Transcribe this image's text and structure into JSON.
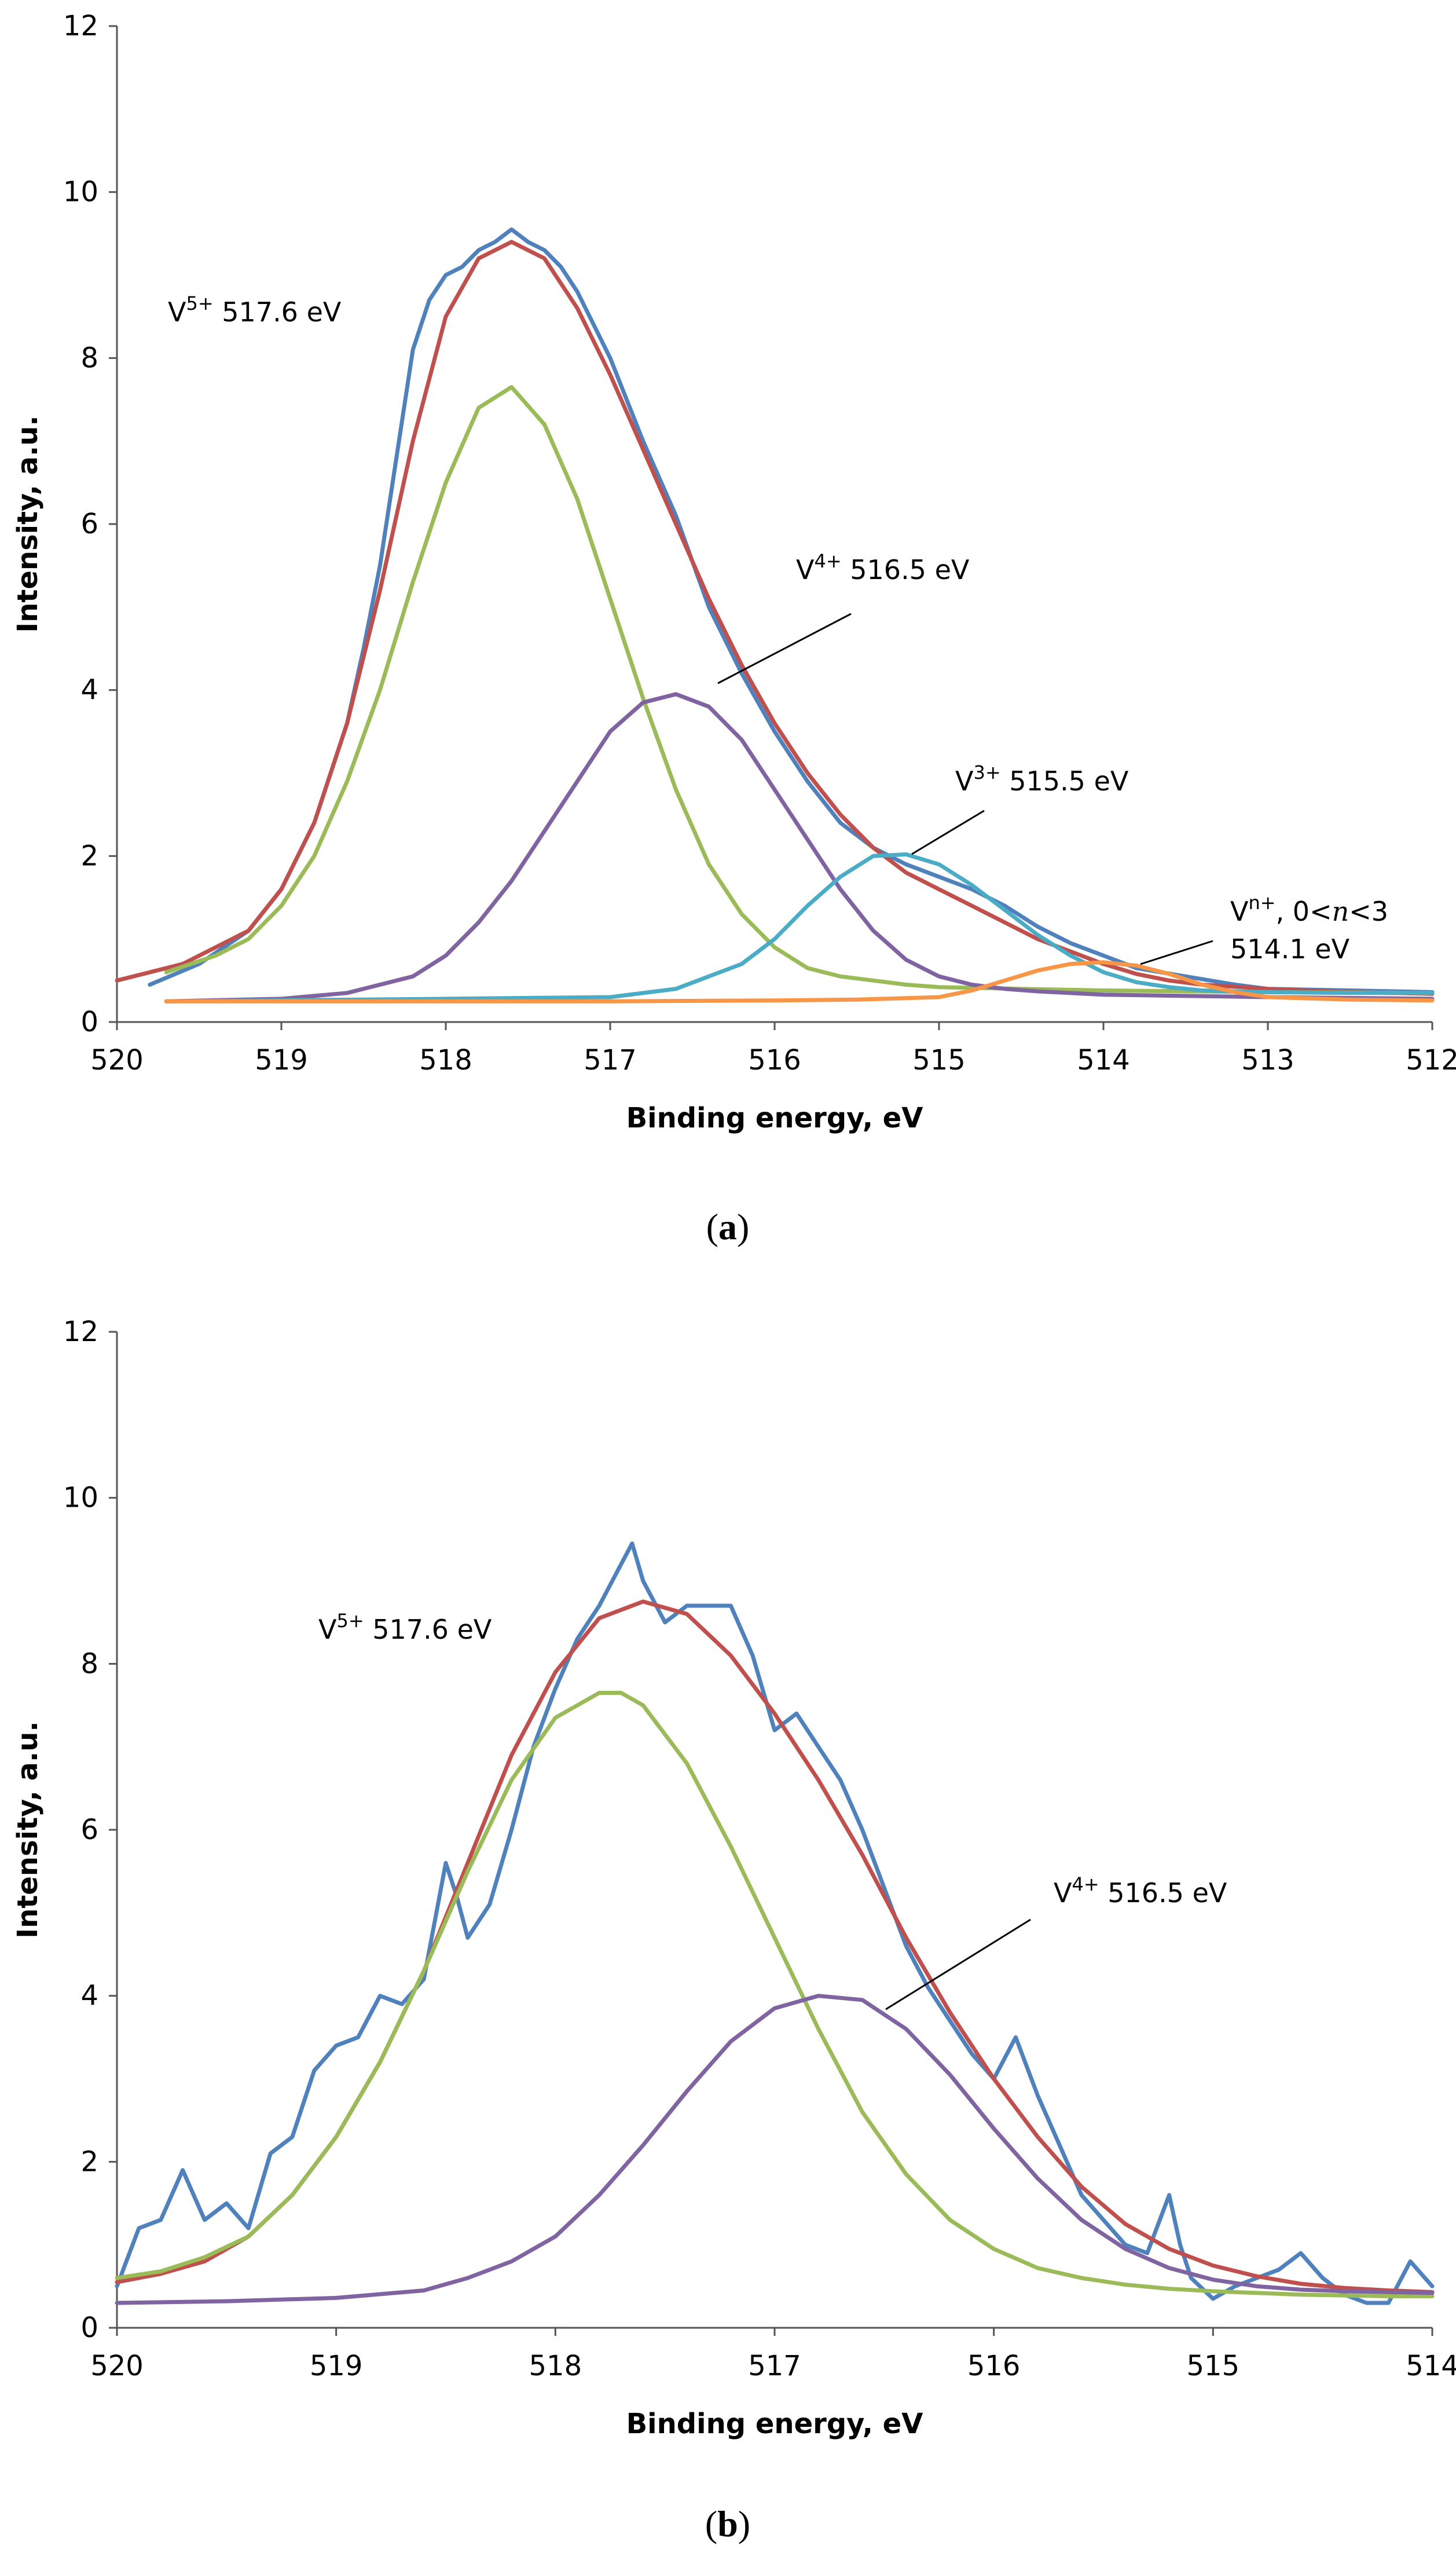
{
  "chart_data": [
    {
      "panel": "a",
      "type": "line",
      "xlabel": "Binding energy, eV",
      "ylabel": "Intensity, a.u.",
      "xlim": [
        520,
        512
      ],
      "ylim": [
        0,
        12
      ],
      "x_reversed": true,
      "xticks": [
        "520",
        "519",
        "518",
        "517",
        "516",
        "515",
        "514",
        "513",
        "512"
      ],
      "yticks": [
        "0",
        "2",
        "4",
        "6",
        "8",
        "10",
        "12"
      ],
      "grid": false,
      "legend": "none",
      "series": [
        {
          "color": "#4f81bd",
          "x": [
            519.8,
            519.5,
            519.2,
            519.0,
            518.8,
            518.6,
            518.5,
            518.4,
            518.3,
            518.2,
            518.1,
            518.0,
            517.9,
            517.8,
            517.7,
            517.6,
            517.5,
            517.4,
            517.3,
            517.2,
            517.0,
            516.8,
            516.6,
            516.4,
            516.2,
            516.0,
            515.8,
            515.6,
            515.4,
            515.2,
            515.0,
            514.8,
            514.6,
            514.4,
            514.2,
            514.0,
            513.8,
            513.5,
            513.2,
            513.0,
            512.5,
            512.0
          ],
          "y": [
            0.45,
            0.7,
            1.1,
            1.6,
            2.4,
            3.6,
            4.5,
            5.5,
            6.8,
            8.1,
            8.7,
            9.0,
            9.1,
            9.3,
            9.4,
            9.55,
            9.4,
            9.3,
            9.1,
            8.8,
            8.0,
            7.0,
            6.1,
            5.0,
            4.2,
            3.5,
            2.9,
            2.4,
            2.1,
            1.9,
            1.75,
            1.6,
            1.4,
            1.15,
            0.95,
            0.8,
            0.65,
            0.55,
            0.45,
            0.4,
            0.38,
            0.36
          ]
        },
        {
          "color": "#c0504d",
          "x": [
            520.0,
            519.6,
            519.2,
            519.0,
            518.8,
            518.6,
            518.4,
            518.2,
            518.0,
            517.8,
            517.6,
            517.4,
            517.2,
            517.0,
            516.8,
            516.6,
            516.4,
            516.2,
            516.0,
            515.8,
            515.6,
            515.4,
            515.2,
            515.0,
            514.8,
            514.6,
            514.4,
            514.2,
            514.0,
            513.8,
            513.6,
            513.4,
            513.0,
            512.5,
            512.0
          ],
          "y": [
            0.5,
            0.7,
            1.1,
            1.6,
            2.4,
            3.6,
            5.2,
            7.0,
            8.5,
            9.2,
            9.4,
            9.2,
            8.6,
            7.8,
            6.9,
            6.0,
            5.1,
            4.3,
            3.6,
            3.0,
            2.5,
            2.1,
            1.8,
            1.6,
            1.4,
            1.2,
            1.0,
            0.85,
            0.7,
            0.58,
            0.5,
            0.45,
            0.4,
            0.36,
            0.34
          ]
        },
        {
          "color": "#9bbb59",
          "x": [
            519.7,
            519.4,
            519.2,
            519.0,
            518.8,
            518.6,
            518.4,
            518.2,
            518.0,
            517.8,
            517.6,
            517.4,
            517.2,
            517.0,
            516.8,
            516.6,
            516.4,
            516.2,
            516.0,
            515.8,
            515.6,
            515.4,
            515.2,
            515.0,
            514.5,
            514.0,
            513.0,
            512.0
          ],
          "y": [
            0.6,
            0.8,
            1.0,
            1.4,
            2.0,
            2.9,
            4.0,
            5.3,
            6.5,
            7.4,
            7.65,
            7.2,
            6.3,
            5.1,
            3.9,
            2.8,
            1.9,
            1.3,
            0.9,
            0.65,
            0.55,
            0.5,
            0.45,
            0.42,
            0.4,
            0.38,
            0.36,
            0.35
          ]
        },
        {
          "color": "#8064a2",
          "x": [
            519.7,
            519.0,
            518.6,
            518.2,
            518.0,
            517.8,
            517.6,
            517.4,
            517.2,
            517.0,
            516.8,
            516.6,
            516.4,
            516.2,
            516.0,
            515.8,
            515.6,
            515.4,
            515.2,
            515.0,
            514.8,
            514.6,
            514.4,
            514.0,
            513.0,
            512.0
          ],
          "y": [
            0.25,
            0.28,
            0.35,
            0.55,
            0.8,
            1.2,
            1.7,
            2.3,
            2.9,
            3.5,
            3.85,
            3.95,
            3.8,
            3.4,
            2.8,
            2.2,
            1.6,
            1.1,
            0.75,
            0.55,
            0.45,
            0.4,
            0.37,
            0.33,
            0.3,
            0.28
          ]
        },
        {
          "color": "#4bacc6",
          "x": [
            519.7,
            518.0,
            517.0,
            516.6,
            516.2,
            516.0,
            515.8,
            515.6,
            515.4,
            515.2,
            515.0,
            514.8,
            514.6,
            514.4,
            514.2,
            514.0,
            513.8,
            513.6,
            513.4,
            513.0,
            512.5,
            512.0
          ],
          "y": [
            0.25,
            0.28,
            0.3,
            0.4,
            0.7,
            1.0,
            1.4,
            1.75,
            2.0,
            2.02,
            1.9,
            1.65,
            1.35,
            1.05,
            0.8,
            0.6,
            0.48,
            0.42,
            0.38,
            0.36,
            0.35,
            0.35
          ]
        },
        {
          "color": "#f79646",
          "x": [
            519.7,
            517.0,
            516.0,
            515.5,
            515.0,
            514.8,
            514.6,
            514.4,
            514.2,
            514.0,
            513.8,
            513.6,
            513.4,
            513.2,
            513.0,
            512.5,
            512.0
          ],
          "y": [
            0.25,
            0.25,
            0.26,
            0.27,
            0.3,
            0.38,
            0.5,
            0.62,
            0.7,
            0.72,
            0.68,
            0.58,
            0.45,
            0.36,
            0.3,
            0.27,
            0.26
          ]
        }
      ],
      "annotations": [
        {
          "ion": "V",
          "sup": "5+",
          "text": " 517.6 eV"
        },
        {
          "ion": "V",
          "sup": "4+",
          "text": " 516.5 eV"
        },
        {
          "ion": "V",
          "sup": "3+",
          "text": " 515.5 eV"
        },
        {
          "ion": "V",
          "sup": "n+",
          "text": ", 0<",
          "italic": "n",
          "tail": "<3",
          "line2": "514.1 eV"
        }
      ],
      "caption": {
        "open": "(",
        "letter": "a",
        "close": ")"
      }
    },
    {
      "panel": "b",
      "type": "line",
      "xlabel": "Binding energy, eV",
      "ylabel": "Intensity, a.u.",
      "xlim": [
        520,
        514
      ],
      "ylim": [
        0,
        12
      ],
      "x_reversed": true,
      "xticks": [
        "520",
        "519",
        "518",
        "517",
        "516",
        "515",
        "514"
      ],
      "yticks": [
        "0",
        "2",
        "4",
        "6",
        "8",
        "10",
        "12"
      ],
      "grid": false,
      "legend": "none",
      "series": [
        {
          "color": "#4f81bd",
          "x": [
            520.0,
            519.9,
            519.8,
            519.7,
            519.65,
            519.6,
            519.5,
            519.4,
            519.3,
            519.2,
            519.1,
            519.0,
            518.9,
            518.8,
            518.7,
            518.6,
            518.5,
            518.45,
            518.4,
            518.3,
            518.2,
            518.1,
            518.0,
            517.9,
            517.8,
            517.7,
            517.65,
            517.6,
            517.5,
            517.4,
            517.3,
            517.2,
            517.1,
            517.0,
            516.9,
            516.8,
            516.7,
            516.6,
            516.5,
            516.4,
            516.3,
            516.2,
            516.1,
            516.0,
            515.9,
            515.8,
            515.7,
            515.6,
            515.5,
            515.4,
            515.3,
            515.2,
            515.15,
            515.1,
            515.0,
            514.9,
            514.8,
            514.7,
            514.6,
            514.5,
            514.4,
            514.3,
            514.2,
            514.1,
            514.0
          ],
          "y": [
            0.5,
            1.2,
            1.3,
            1.9,
            1.6,
            1.3,
            1.5,
            1.2,
            2.1,
            2.3,
            3.1,
            3.4,
            3.5,
            4.0,
            3.9,
            4.2,
            5.6,
            5.2,
            4.7,
            5.1,
            6.0,
            7.0,
            7.7,
            8.3,
            8.7,
            9.2,
            9.45,
            9.0,
            8.5,
            8.7,
            8.7,
            8.7,
            8.1,
            7.2,
            7.4,
            7.0,
            6.6,
            6.0,
            5.3,
            4.6,
            4.1,
            3.7,
            3.3,
            3.0,
            3.5,
            2.8,
            2.2,
            1.6,
            1.3,
            1.0,
            0.9,
            1.6,
            1.0,
            0.6,
            0.35,
            0.5,
            0.6,
            0.7,
            0.9,
            0.6,
            0.4,
            0.3,
            0.3,
            0.8,
            0.5
          ]
        },
        {
          "color": "#c0504d",
          "x": [
            520.0,
            519.8,
            519.6,
            519.4,
            519.2,
            519.0,
            518.8,
            518.6,
            518.4,
            518.2,
            518.0,
            517.8,
            517.6,
            517.4,
            517.2,
            517.0,
            516.8,
            516.6,
            516.4,
            516.2,
            516.0,
            515.8,
            515.6,
            515.4,
            515.2,
            515.0,
            514.8,
            514.6,
            514.4,
            514.2,
            514.0
          ],
          "y": [
            0.55,
            0.65,
            0.8,
            1.1,
            1.6,
            2.3,
            3.2,
            4.3,
            5.6,
            6.9,
            7.9,
            8.55,
            8.75,
            8.6,
            8.1,
            7.4,
            6.6,
            5.7,
            4.7,
            3.8,
            3.0,
            2.3,
            1.7,
            1.25,
            0.95,
            0.75,
            0.62,
            0.53,
            0.48,
            0.45,
            0.43
          ]
        },
        {
          "color": "#9bbb59",
          "x": [
            520.0,
            519.8,
            519.6,
            519.4,
            519.2,
            519.0,
            518.8,
            518.6,
            518.4,
            518.2,
            518.0,
            517.8,
            517.7,
            517.6,
            517.4,
            517.2,
            517.0,
            516.8,
            516.6,
            516.4,
            516.2,
            516.0,
            515.8,
            515.6,
            515.4,
            515.2,
            515.0,
            514.8,
            514.6,
            514.4,
            514.2,
            514.0
          ],
          "y": [
            0.6,
            0.68,
            0.85,
            1.1,
            1.6,
            2.3,
            3.2,
            4.3,
            5.5,
            6.6,
            7.35,
            7.65,
            7.65,
            7.5,
            6.8,
            5.8,
            4.7,
            3.6,
            2.6,
            1.85,
            1.3,
            0.95,
            0.72,
            0.6,
            0.52,
            0.47,
            0.44,
            0.42,
            0.4,
            0.39,
            0.38,
            0.38
          ]
        },
        {
          "color": "#8064a2",
          "x": [
            520.0,
            519.5,
            519.0,
            518.6,
            518.4,
            518.2,
            518.0,
            517.8,
            517.6,
            517.4,
            517.2,
            517.0,
            516.8,
            516.6,
            516.4,
            516.2,
            516.0,
            515.8,
            515.6,
            515.4,
            515.2,
            515.0,
            514.8,
            514.6,
            514.4,
            514.2,
            514.0
          ],
          "y": [
            0.3,
            0.32,
            0.36,
            0.45,
            0.6,
            0.8,
            1.1,
            1.6,
            2.2,
            2.85,
            3.45,
            3.85,
            4.0,
            3.95,
            3.6,
            3.05,
            2.4,
            1.8,
            1.3,
            0.95,
            0.72,
            0.58,
            0.5,
            0.46,
            0.44,
            0.43,
            0.42
          ]
        }
      ],
      "annotations": [
        {
          "ion": "V",
          "sup": "5+",
          "text": " 517.6 eV"
        },
        {
          "ion": "V",
          "sup": "4+",
          "text": " 516.5 eV"
        }
      ],
      "caption": {
        "open": "(",
        "letter": "b",
        "close": ")"
      }
    }
  ]
}
